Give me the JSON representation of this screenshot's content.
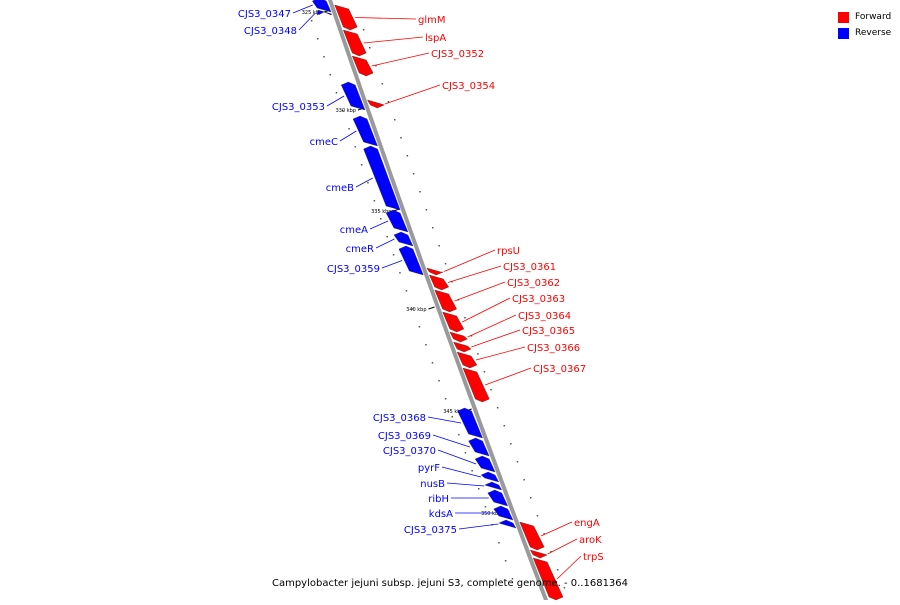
{
  "legend": [
    {
      "label": "Forward",
      "color": "#ff0000"
    },
    {
      "label": "Reverse",
      "color": "#0000ff"
    }
  ],
  "caption": "Campylobacter jejuni subsp. jejuni S3, complete genome. - 0..1681364",
  "colors": {
    "forward": "#ff0000",
    "reverse": "#0000ff",
    "backbone": "#9a9a9a"
  },
  "ticks": [
    "325 kbp",
    "330 kbp",
    "335 kbp",
    "340 kbp",
    "345 kbp",
    "350 kbp"
  ],
  "genes": [
    {
      "label": "CJS3_0347",
      "strand": "reverse"
    },
    {
      "label": "CJS3_0348",
      "strand": "reverse"
    },
    {
      "label": "glmM",
      "strand": "forward"
    },
    {
      "label": "lspA",
      "strand": "forward"
    },
    {
      "label": "CJS3_0352",
      "strand": "forward"
    },
    {
      "label": "CJS3_0353",
      "strand": "reverse"
    },
    {
      "label": "CJS3_0354",
      "strand": "forward"
    },
    {
      "label": "cmeC",
      "strand": "reverse"
    },
    {
      "label": "cmeB",
      "strand": "reverse"
    },
    {
      "label": "cmeA",
      "strand": "reverse"
    },
    {
      "label": "cmeR",
      "strand": "reverse"
    },
    {
      "label": "CJS3_0359",
      "strand": "reverse"
    },
    {
      "label": "rpsU",
      "strand": "forward"
    },
    {
      "label": "CJS3_0361",
      "strand": "forward"
    },
    {
      "label": "CJS3_0362",
      "strand": "forward"
    },
    {
      "label": "CJS3_0363",
      "strand": "forward"
    },
    {
      "label": "CJS3_0364",
      "strand": "forward"
    },
    {
      "label": "CJS3_0365",
      "strand": "forward"
    },
    {
      "label": "CJS3_0366",
      "strand": "forward"
    },
    {
      "label": "CJS3_0367",
      "strand": "forward"
    },
    {
      "label": "CJS3_0368",
      "strand": "reverse"
    },
    {
      "label": "CJS3_0369",
      "strand": "reverse"
    },
    {
      "label": "CJS3_0370",
      "strand": "reverse"
    },
    {
      "label": "pyrF",
      "strand": "reverse"
    },
    {
      "label": "nusB",
      "strand": "reverse"
    },
    {
      "label": "ribH",
      "strand": "reverse"
    },
    {
      "label": "kdsA",
      "strand": "reverse"
    },
    {
      "label": "CJS3_0375",
      "strand": "reverse"
    },
    {
      "label": "engA",
      "strand": "forward"
    },
    {
      "label": "aroK",
      "strand": "forward"
    },
    {
      "label": "trpS",
      "strand": "forward"
    }
  ]
}
